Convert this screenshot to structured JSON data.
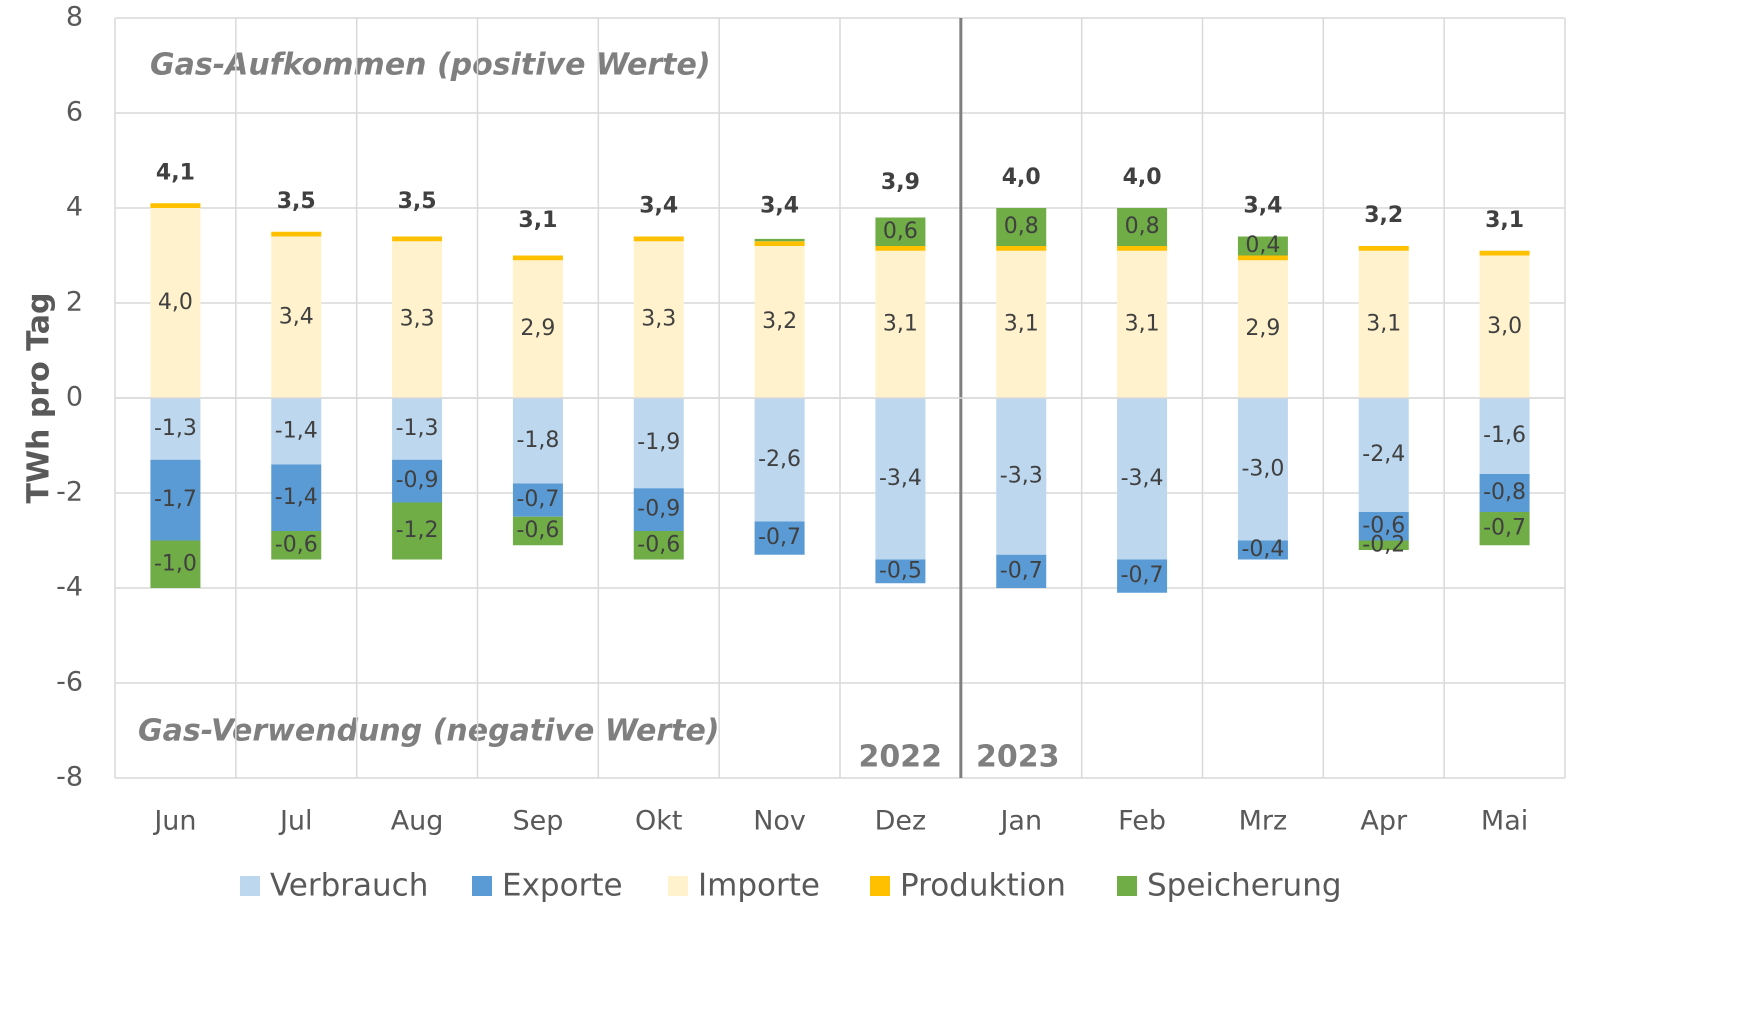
{
  "chart_data": {
    "type": "stacked_bar",
    "y_label": "TWh pro Tag",
    "annotations": [
      "Gas-Aufkommen (positive Werte)",
      "Gas-Verwendung (negative Werte)",
      "2022",
      "2023"
    ],
    "categories": [
      "Jun",
      "Jul",
      "Aug",
      "Sep",
      "Okt",
      "Nov",
      "Dez",
      "Jan",
      "Feb",
      "Mrz",
      "Apr",
      "Mai"
    ],
    "series": [
      {
        "name": "Verbrauch",
        "color": "#bdd7ee",
        "values": [
          -1.3,
          -1.4,
          -1.3,
          -1.8,
          -1.9,
          -2.6,
          -3.4,
          -3.3,
          -3.4,
          -3.0,
          -2.4,
          -1.6
        ],
        "value_labels": [
          "-1,3",
          "-1,4",
          "-1,3",
          "-1,8",
          "-1,9",
          "-2,6",
          "-3,4",
          "-3,3",
          "-3,4",
          "-3,0",
          "-2,4",
          "-1,6"
        ]
      },
      {
        "name": "Exporte",
        "color": "#5b9bd5",
        "values": [
          -1.7,
          -1.4,
          -0.9,
          -0.7,
          -0.9,
          -0.7,
          -0.5,
          -0.7,
          -0.7,
          -0.4,
          -0.6,
          -0.8
        ],
        "value_labels": [
          "-1,7",
          "-1,4",
          "-0,9",
          "-0,7",
          "-0,9",
          "-0,7",
          "-0,5",
          "-0,7",
          "-0,7",
          "-0,4",
          "-0,6",
          "-0,8"
        ]
      },
      {
        "name": "Importe",
        "color": "#fff2cc",
        "values": [
          4.0,
          3.4,
          3.3,
          2.9,
          3.3,
          3.2,
          3.1,
          3.1,
          3.1,
          2.9,
          3.1,
          3.0
        ],
        "value_labels": [
          "4,0",
          "3,4",
          "3,3",
          "2,9",
          "3,3",
          "3,2",
          "3,1",
          "3,1",
          "3,1",
          "2,9",
          "3,1",
          "3,0"
        ]
      },
      {
        "name": "Produktion",
        "color": "#ffc000",
        "values": [
          0.1,
          0.1,
          0.1,
          0.1,
          0.1,
          0.1,
          0.1,
          0.1,
          0.1,
          0.1,
          0.1,
          0.1
        ]
      },
      {
        "name": "Speicherung",
        "color": "#70ad47",
        "values": [
          -1.0,
          -0.6,
          -1.2,
          -0.6,
          -0.6,
          0.05,
          0.6,
          0.8,
          0.8,
          0.4,
          -0.2,
          -0.7
        ],
        "value_labels": [
          "-1,0",
          "-0,6",
          "-1,2",
          "-0,6",
          "-0,6",
          null,
          "0,6",
          "0,8",
          "0,8",
          "0,4",
          "-0,2",
          "-0,7"
        ]
      }
    ],
    "totals": {
      "values": [
        4.1,
        3.5,
        3.5,
        3.1,
        3.4,
        3.4,
        3.9,
        4.0,
        4.0,
        3.4,
        3.2,
        3.1
      ],
      "value_labels": [
        "4,1",
        "3,5",
        "3,5",
        "3,1",
        "3,4",
        "3,4",
        "3,9",
        "4,0",
        "4,0",
        "3,4",
        "3,2",
        "3,1"
      ]
    },
    "ylim": [
      -8,
      8
    ],
    "yticks": [
      -8,
      -6,
      -4,
      -2,
      0,
      2,
      4,
      6,
      8
    ],
    "grid": true,
    "legend": "bottom"
  }
}
